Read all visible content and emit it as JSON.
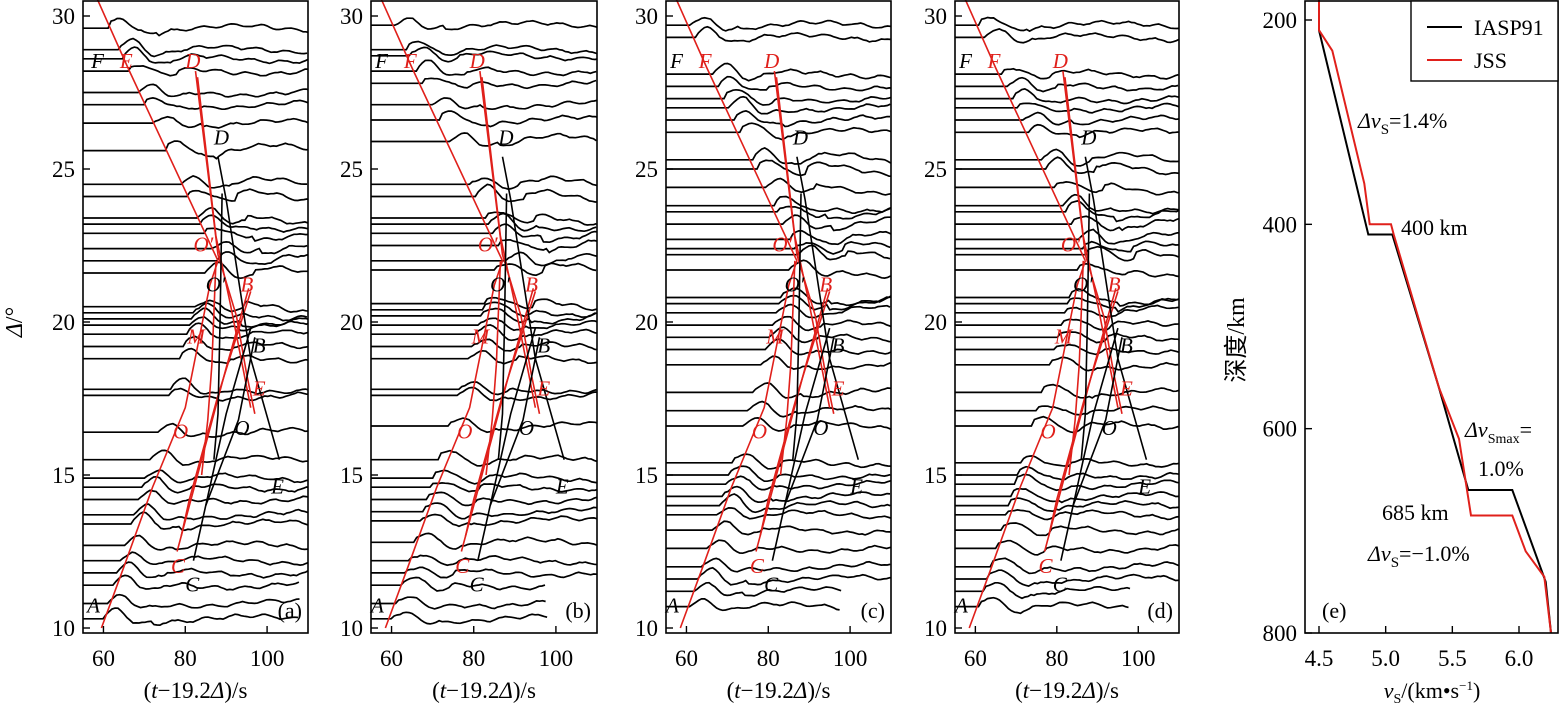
{
  "figure": {
    "panels": [
      "(a)",
      "(b)",
      "(c)",
      "(d)",
      "(e)"
    ]
  },
  "chart_data": [
    {
      "type": "line",
      "panel_label": "(a)",
      "title": "",
      "xlabel": "(t−19.2Δ)/s",
      "ylabel": "Δ/°",
      "xlim": [
        55,
        110
      ],
      "ylim": [
        10,
        30.5
      ],
      "xticks": [
        "60",
        "80",
        "100"
      ],
      "yticks": [
        "10",
        "15",
        "20",
        "25",
        "30"
      ],
      "trace_offsets_deg": [
        29.6,
        28.9,
        28.6,
        28.2,
        27.5,
        27.1,
        26.5,
        25.6,
        24.5,
        24.1,
        23.4,
        23.2,
        22.9,
        22.4,
        22.0,
        21.6,
        20.5,
        20.3,
        20.1,
        19.9,
        19.6,
        19.2,
        18.8,
        17.8,
        17.6,
        16.4,
        15.5,
        14.9,
        14.6,
        14.2,
        13.7,
        13.4,
        12.7,
        12.2,
        11.8,
        11.4,
        10.8,
        10.3
      ],
      "labels": {
        "black": [
          "F",
          "D",
          "O′",
          "B",
          "O",
          "E",
          "C",
          "A"
        ],
        "red": [
          "E",
          "D",
          "O′",
          "B",
          "M",
          "E",
          "O",
          "C"
        ]
      },
      "branches_red": [
        {
          "name": "AF",
          "points": [
            [
              59.5,
              10.0
            ],
            [
              86,
              22.0
            ],
            [
              66,
              28.2
            ],
            [
              58.5,
              30.5
            ]
          ]
        },
        {
          "name": "DC",
          "points": [
            [
              82.5,
              28.2
            ],
            [
              91.5,
              20.6
            ],
            [
              78,
              12.5
            ]
          ]
        },
        {
          "name": "O'M",
          "points": [
            [
              86,
              22.0
            ],
            [
              84,
              16.6
            ],
            [
              80.5,
              13.2
            ]
          ]
        },
        {
          "name": "BE",
          "points": [
            [
              96,
              21.0
            ],
            [
              87,
              17.0
            ]
          ]
        },
        {
          "name": "DE",
          "points": [
            [
              85,
              26.4
            ],
            [
              101,
              16.8
            ]
          ]
        }
      ],
      "branches_black": [
        {
          "name": "DE",
          "points": [
            [
              88,
              25.4
            ],
            [
              103,
              15.5
            ]
          ]
        },
        {
          "name": "DC",
          "points": [
            [
              90,
              23.8
            ],
            [
              83,
              12.2
            ]
          ]
        },
        {
          "name": "OB",
          "points": [
            [
              95,
              20.0
            ],
            [
              82,
              14.0
            ]
          ]
        }
      ]
    },
    {
      "type": "line",
      "panel_label": "(b)",
      "xlabel": "(t−19.2Δ)/s",
      "xlim": [
        55,
        110
      ],
      "ylim": [
        10,
        30.5
      ],
      "xticks": [
        "60",
        "80",
        "100"
      ],
      "yticks": [
        "10",
        "15",
        "20",
        "25",
        "30"
      ],
      "trace_offsets_deg": [
        29.7,
        28.9,
        28.7,
        28.2,
        27.8,
        27.1,
        26.6,
        25.9,
        24.5,
        24.1,
        23.4,
        23.2,
        22.9,
        22.5,
        22.0,
        21.7,
        20.6,
        20.4,
        20.2,
        19.9,
        19.6,
        19.2,
        18.8,
        17.8,
        17.6,
        16.6,
        15.5,
        14.9,
        14.6,
        14.2,
        13.8,
        13.5,
        12.8,
        12.2,
        11.8,
        11.4,
        10.8,
        10.3
      ],
      "labels": {
        "black": [
          "F",
          "D",
          "O′",
          "B",
          "O",
          "E",
          "C",
          "A"
        ],
        "red": [
          "F",
          "D",
          "O′",
          "B",
          "M",
          "E",
          "O",
          "C"
        ]
      }
    },
    {
      "type": "line",
      "panel_label": "(c)",
      "xlabel": "(t−19.2Δ)/s",
      "xlim": [
        55,
        110
      ],
      "ylim": [
        10,
        30.5
      ],
      "xticks": [
        "60",
        "80",
        "100"
      ],
      "yticks": [
        "10",
        "15",
        "20",
        "25",
        "30"
      ],
      "trace_offsets_deg": [
        29.7,
        29.3,
        28.1,
        27.7,
        27.3,
        27.0,
        26.6,
        26.2,
        25.3,
        25.0,
        24.4,
        23.8,
        23.6,
        23.2,
        22.7,
        22.4,
        22.2,
        21.7,
        20.8,
        20.6,
        20.3,
        19.9,
        19.5,
        19.1,
        18.6,
        17.7,
        17.1,
        16.6,
        15.4,
        15.0,
        14.7,
        14.3,
        14.0,
        13.7,
        13.2,
        12.6,
        12.0,
        11.6,
        11.2,
        10.7
      ],
      "labels": {
        "black": [
          "F",
          "D",
          "O′",
          "B",
          "O",
          "E",
          "C",
          "A"
        ],
        "red": [
          "F",
          "D",
          "O′",
          "B",
          "M",
          "E",
          "O",
          "C"
        ]
      }
    },
    {
      "type": "line",
      "panel_label": "(d)",
      "xlabel": "(t−19.2Δ)/s",
      "xlim": [
        55,
        110
      ],
      "ylim": [
        10,
        30.5
      ],
      "xticks": [
        "60",
        "80",
        "100"
      ],
      "yticks": [
        "10",
        "15",
        "20",
        "25",
        "30"
      ],
      "trace_offsets_deg": [
        29.7,
        29.3,
        28.1,
        27.7,
        27.3,
        27.0,
        26.6,
        26.2,
        25.3,
        25.0,
        24.4,
        23.8,
        23.6,
        23.2,
        22.7,
        22.4,
        22.2,
        21.7,
        20.8,
        20.6,
        20.3,
        19.9,
        19.5,
        19.1,
        18.6,
        17.7,
        17.1,
        16.6,
        15.4,
        15.0,
        14.7,
        14.3,
        14.0,
        13.7,
        13.2,
        12.6,
        12.0,
        11.6,
        11.2,
        10.7
      ],
      "labels": {
        "black": [
          "F",
          "D",
          "O′",
          "B",
          "O",
          "E",
          "C",
          "A"
        ],
        "red": [
          "F",
          "D",
          "O′",
          "B",
          "M",
          "E",
          "O",
          "C"
        ]
      }
    },
    {
      "type": "line",
      "panel_label": "(e)",
      "xlabel": "vS/(km•s⁻¹)",
      "ylabel": "深度/km",
      "xlim": [
        4.42,
        6.27
      ],
      "ylim": [
        800,
        180
      ],
      "xticks": [
        "4.5",
        "5.0",
        "5.5",
        "6.0"
      ],
      "yticks": [
        "200",
        "400",
        "600",
        "800"
      ],
      "legend": {
        "position": "top-right",
        "entries": [
          {
            "name": "IASP91",
            "color": "#000000"
          },
          {
            "name": "JSS",
            "color": "#e0201b"
          }
        ]
      },
      "series": [
        {
          "name": "IASP91",
          "color": "#000000",
          "points": [
            [
              4.5,
              180
            ],
            [
              4.5,
              210
            ],
            [
              4.87,
              410
            ],
            [
              5.05,
              410
            ],
            [
              5.4,
              560
            ],
            [
              5.62,
              660
            ],
            [
              5.95,
              660
            ],
            [
              6.2,
              750
            ],
            [
              6.24,
              800
            ]
          ]
        },
        {
          "name": "JSS",
          "color": "#e0201b",
          "points": [
            [
              4.5,
              180
            ],
            [
              4.5,
              210
            ],
            [
              4.6,
              230
            ],
            [
              4.84,
              360
            ],
            [
              4.88,
              400
            ],
            [
              5.04,
              400
            ],
            [
              5.06,
              410
            ],
            [
              5.4,
              560
            ],
            [
              5.55,
              610
            ],
            [
              5.64,
              685
            ],
            [
              5.95,
              685
            ],
            [
              6.05,
              720
            ],
            [
              6.19,
              745
            ],
            [
              6.24,
              800
            ]
          ]
        }
      ],
      "annotations": [
        "Δv_S=1.4%",
        "400 km",
        "Δv_Smax=",
        "1.0%",
        "685 km",
        "Δv_S=−1.0%"
      ]
    }
  ],
  "text": {
    "xlabel_pre": "(",
    "xlabel_t": "t",
    "xlabel_mid": "−19.2",
    "xlabel_delta": "Δ",
    "xlabel_post": ")/s",
    "ylabel_delta": "Δ",
    "ylabel_unit": "/°",
    "e_ylabel": "深度/km",
    "e_xlabel_v": "v",
    "e_xlabel_sub": "S",
    "e_xlabel_unit": "/(km•s",
    "e_xlabel_sup": "−1",
    "e_xlabel_close": ")",
    "ann_dv": "Δv",
    "ann_sub_s": "S",
    "ann_sub_smax": "Smax",
    "ann_14": "=1.4%",
    "ann_400": "400 km",
    "ann_eq": "=",
    "ann_10": "1.0%",
    "ann_685": "685 km",
    "ann_m10": "=−1.0%"
  }
}
